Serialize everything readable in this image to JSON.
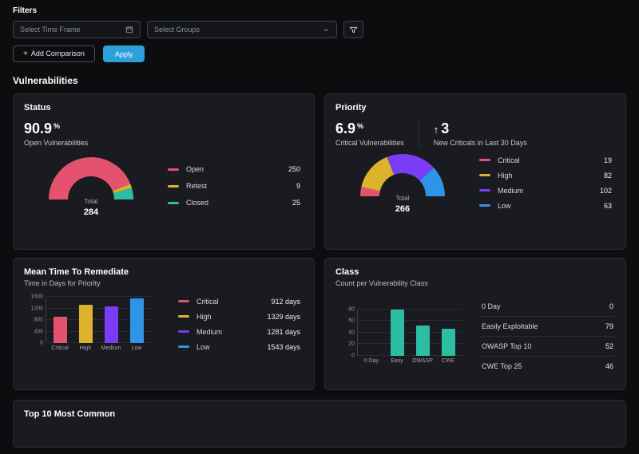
{
  "filters": {
    "title": "Filters",
    "time_frame_placeholder": "Select Time Frame",
    "groups_placeholder": "Select Groups",
    "add_comparison_plus": "+",
    "add_comparison_label": "Add Comparison",
    "apply_label": "Apply"
  },
  "section_title": "Vulnerabilities",
  "bottom_card_title": "Top 10 Most Common",
  "colors": {
    "pink": "#e5526e",
    "yellow": "#dcb32a",
    "teal": "#2dbda3",
    "purple": "#7a3cf4",
    "blue": "#2f93e8",
    "accent_blue": "#2d9fd9"
  },
  "cards": {
    "status": {
      "title": "Status",
      "stat_value": "90.9",
      "stat_unit": "%",
      "stat_label": "Open Vulnerabilities",
      "gauge": {
        "total_label": "Total",
        "total_value": "284",
        "segments": [
          {
            "label": "Open",
            "value": 250,
            "color": "pink"
          },
          {
            "label": "Retest",
            "value": 9,
            "color": "yellow"
          },
          {
            "label": "Closed",
            "value": 25,
            "color": "teal"
          }
        ]
      }
    },
    "priority": {
      "title": "Priority",
      "stat_value": "6.9",
      "stat_unit": "%",
      "stat_label": "Critical Vulnerabilities",
      "delta_arrow": "↑",
      "delta_value": "3",
      "delta_label": "New Criticals in Last 30 Days",
      "gauge": {
        "total_label": "Total",
        "total_value": "266",
        "segments": [
          {
            "label": "Critical",
            "value": 19,
            "color": "pink"
          },
          {
            "label": "High",
            "value": 82,
            "color": "yellow"
          },
          {
            "label": "Medium",
            "value": 102,
            "color": "purple"
          },
          {
            "label": "Low",
            "value": 63,
            "color": "blue"
          }
        ]
      }
    },
    "mttr": {
      "title": "Mean Time To Remediate",
      "subtitle": "Time in Days for Priority",
      "chart": {
        "type": "bar",
        "categories": [
          "Critical",
          "High",
          "Medium",
          "Low"
        ],
        "values": [
          912,
          1329,
          1281,
          1543
        ],
        "colors": [
          "pink",
          "yellow",
          "purple",
          "blue"
        ],
        "y_ticks": [
          0,
          400,
          800,
          1200,
          1600
        ],
        "ymax": 1600
      },
      "legend": [
        {
          "label": "Critical",
          "value": "912 days",
          "color": "pink"
        },
        {
          "label": "High",
          "value": "1329 days",
          "color": "yellow"
        },
        {
          "label": "Medium",
          "value": "1281 days",
          "color": "purple"
        },
        {
          "label": "Low",
          "value": "1543 days",
          "color": "blue"
        }
      ]
    },
    "class": {
      "title": "Class",
      "subtitle": "Count per Vulnerability Class",
      "chart": {
        "type": "bar",
        "categories": [
          "0 Day",
          "Easy",
          "OWASP",
          "CWE"
        ],
        "values": [
          0,
          79,
          52,
          46
        ],
        "colors": [
          "teal",
          "teal",
          "teal",
          "teal"
        ],
        "y_ticks": [
          0,
          20,
          40,
          60,
          80
        ],
        "ymax": 80
      },
      "rows": [
        {
          "label": "0 Day",
          "value": "0"
        },
        {
          "label": "Easily Exploitable",
          "value": "79"
        },
        {
          "label": "OWASP Top 10",
          "value": "52"
        },
        {
          "label": "CWE Top 25",
          "value": "46"
        }
      ]
    }
  },
  "chart_data": [
    {
      "type": "pie",
      "style": "half-donut",
      "title": "Status",
      "categories": [
        "Open",
        "Retest",
        "Closed"
      ],
      "values": [
        250,
        9,
        25
      ],
      "center_label": "Total",
      "center_value": 284
    },
    {
      "type": "pie",
      "style": "half-donut",
      "title": "Priority",
      "categories": [
        "Critical",
        "High",
        "Medium",
        "Low"
      ],
      "values": [
        19,
        82,
        102,
        63
      ],
      "center_label": "Total",
      "center_value": 266
    },
    {
      "type": "bar",
      "title": "Mean Time To Remediate",
      "categories": [
        "Critical",
        "High",
        "Medium",
        "Low"
      ],
      "values": [
        912,
        1329,
        1281,
        1543
      ],
      "ylabel": "days",
      "ylim": [
        0,
        1600
      ]
    },
    {
      "type": "bar",
      "title": "Class",
      "categories": [
        "0 Day",
        "Easy",
        "OWASP",
        "CWE"
      ],
      "values": [
        0,
        79,
        52,
        46
      ],
      "ylim": [
        0,
        80
      ]
    }
  ]
}
